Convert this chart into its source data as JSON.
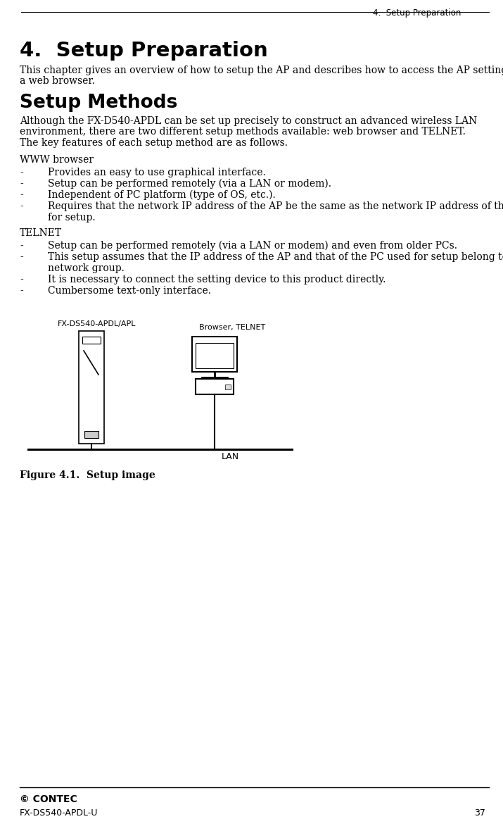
{
  "page_title_header": "4.  Setup Preparation",
  "chapter_heading": "4.  Setup Preparation",
  "intro_text_1": "This chapter gives an overview of how to setup the AP and describes how to access the AP settings using",
  "intro_text_2": "a web browser.",
  "section_heading": "Setup Methods",
  "section_intro1a": "Although the FX-D540-APDL can be set up precisely to construct an advanced wireless LAN",
  "section_intro1b": "environment, there are two different setup methods available: web browser and TELNET.",
  "section_intro2": "The key features of each setup method are as follows.",
  "www_label": "WWW browser",
  "www_bullets": [
    "Provides an easy to use graphical interface.",
    "Setup can be performed remotely (via a LAN or modem).",
    "Independent of PC platform (type of OS, etc.).",
    "Requires that the network IP address of the AP be the same as the network IP address of the PC used"
  ],
  "www_bullet4_cont": "for setup.",
  "telnet_label": "TELNET",
  "telnet_bullets": [
    "Setup can be performed remotely (via a LAN or modem) and even from older PCs.",
    "This setup assumes that the IP address of the AP and that of the PC used for setup belong to the same",
    "It is necessary to connect the setting device to this product directly.",
    "Cumbersome text-only interface."
  ],
  "telnet_bullet2_cont": "network group.",
  "figure_caption": "Figure 4.1.  Setup image",
  "ap_label": "FX-DS540-APDL/APL",
  "browser_label": "Browser, TELNET",
  "lan_label": "LAN",
  "footer_logo": "© CONTEC",
  "footer_model": "FX-DS540-APDL-U",
  "footer_page": "37",
  "bg_color": "#ffffff",
  "text_color": "#000000"
}
